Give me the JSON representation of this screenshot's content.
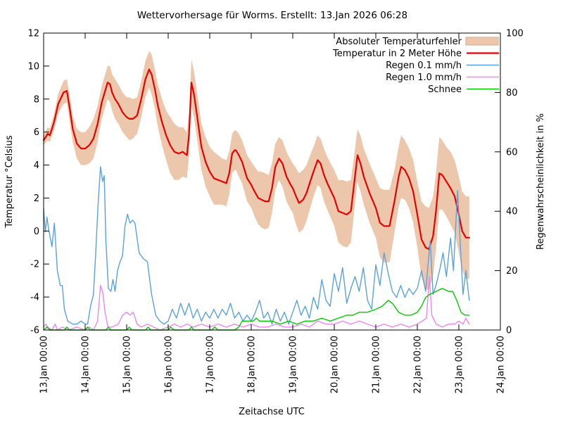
{
  "chart_data": {
    "type": "line",
    "title": "Wettervorhersage für Worms. Erstellt: 13.Jan 2026 06:28",
    "xlabel": "Zeitachse UTC",
    "ylabel_left": "Temperatur °Celsius",
    "ylabel_right": "Regenwahrscheinlichkeit in %",
    "x_unit": "days since 13.Jan 00:00 UTC",
    "x_range_days": [
      0,
      11
    ],
    "x_ticks": [
      "13.Jan 00:00",
      "14.Jan 00:00",
      "15.Jan 00:00",
      "16.Jan 00:00",
      "17.Jan 00:00",
      "18.Jan 00:00",
      "19.Jan 00:00",
      "20.Jan 00:00",
      "21.Jan 00:00",
      "22.Jan 00:00",
      "23.Jan 00:00",
      "24.Jan 00:00"
    ],
    "ylim_left": [
      -6,
      12
    ],
    "yticks_left": [
      -6,
      -4,
      -2,
      0,
      2,
      4,
      6,
      8,
      10,
      12
    ],
    "ylim_right": [
      0,
      100
    ],
    "yticks_right": [
      0,
      20,
      40,
      60,
      80,
      100
    ],
    "grid": false,
    "legend_position": "top-right-inside",
    "legend": [
      {
        "label": "Absoluter Temperaturfehler",
        "color": "#edc7ac",
        "type": "band"
      },
      {
        "label": "Temperatur in 2 Meter Höhe",
        "color": "#e60000",
        "type": "line"
      },
      {
        "label": "Regen 0.1 mm/h",
        "color": "#5aa2de",
        "type": "line"
      },
      {
        "label": "Regen 1.0 mm/h",
        "color": "#ee86ee",
        "type": "line"
      },
      {
        "label": "Schnee",
        "color": "#00cc00",
        "type": "line"
      }
    ],
    "series": {
      "temperature": {
        "name": "Temperatur in 2 Meter Höhe",
        "axis": "left",
        "unit": "°C",
        "color": "#e60000",
        "x": [
          0,
          0.1,
          0.15,
          0.25,
          0.35,
          0.48,
          0.56,
          0.63,
          0.7,
          0.8,
          0.9,
          1,
          1.1,
          1.2,
          1.3,
          1.4,
          1.54,
          1.6,
          1.65,
          1.72,
          1.8,
          1.9,
          2,
          2.07,
          2.15,
          2.25,
          2.35,
          2.45,
          2.54,
          2.6,
          2.68,
          2.75,
          2.85,
          2.95,
          3.05,
          3.15,
          3.25,
          3.35,
          3.45,
          3.5,
          3.56,
          3.62,
          3.7,
          3.8,
          3.9,
          4,
          4.1,
          4.2,
          4.3,
          4.4,
          4.47,
          4.54,
          4.6,
          4.63,
          4.7,
          4.78,
          4.9,
          5,
          5.08,
          5.17,
          5.25,
          5.33,
          5.42,
          5.5,
          5.58,
          5.67,
          5.75,
          5.85,
          5.95,
          6,
          6.08,
          6.15,
          6.25,
          6.33,
          6.42,
          6.5,
          6.6,
          6.67,
          6.75,
          6.85,
          7,
          7.1,
          7.2,
          7.3,
          7.4,
          7.48,
          7.56,
          7.63,
          7.71,
          7.85,
          8,
          8.1,
          8.2,
          8.33,
          8.45,
          8.55,
          8.61,
          8.7,
          8.8,
          8.9,
          9,
          9.1,
          9.2,
          9.28,
          9.38,
          9.45,
          9.53,
          9.6,
          9.7,
          9.8,
          9.9,
          10,
          10.08,
          10.17,
          10.25
        ],
        "y": [
          5.5,
          5.9,
          5.8,
          6.6,
          7.7,
          8.4,
          8.5,
          7.4,
          6.2,
          5.3,
          5.0,
          5.0,
          5.2,
          5.6,
          6.5,
          7.8,
          9.0,
          8.9,
          8.4,
          8.0,
          7.7,
          7.2,
          6.9,
          6.8,
          6.8,
          7.0,
          8.0,
          9.2,
          9.8,
          9.5,
          8.6,
          7.6,
          6.6,
          5.8,
          5.2,
          4.8,
          4.7,
          4.8,
          4.6,
          5.8,
          9.0,
          8.3,
          6.9,
          5.1,
          4.2,
          3.6,
          3.2,
          3.1,
          3.0,
          2.9,
          3.5,
          4.7,
          4.9,
          4.9,
          4.6,
          4.2,
          3.2,
          2.8,
          2.4,
          2.0,
          1.9,
          1.8,
          1.8,
          2.6,
          3.9,
          4.4,
          4.1,
          3.3,
          2.8,
          2.6,
          2.1,
          1.7,
          1.9,
          2.3,
          3.0,
          3.6,
          4.3,
          4.1,
          3.4,
          2.8,
          2.0,
          1.2,
          1.1,
          1.0,
          1.2,
          2.9,
          4.6,
          4.1,
          3.3,
          2.3,
          1.4,
          0.5,
          0.3,
          0.3,
          1.8,
          3.3,
          3.9,
          3.7,
          3.2,
          2.4,
          1.0,
          -0.5,
          -1.0,
          -1.1,
          -0.3,
          1.2,
          3.5,
          3.4,
          3.0,
          2.6,
          2.1,
          1.0,
          0.0,
          -0.4,
          -0.4
        ]
      },
      "temperature_error": {
        "name": "Absoluter Temperaturfehler",
        "axis": "left",
        "unit": "°C",
        "color": "#edc7ac",
        "note": "band = temperature ± halfwidth, shares x of temperature",
        "halfwidth": [
          0.3,
          0.4,
          0.4,
          0.5,
          0.6,
          0.7,
          0.7,
          0.8,
          0.8,
          0.9,
          1.0,
          1.0,
          1.1,
          1.2,
          1.1,
          1.0,
          1.0,
          1.1,
          1.1,
          1.2,
          1.2,
          1.2,
          1.2,
          1.3,
          1.2,
          1.1,
          1.1,
          1.1,
          1.1,
          1.2,
          1.2,
          1.3,
          1.4,
          1.5,
          1.7,
          1.7,
          1.6,
          1.5,
          1.4,
          1.3,
          1.4,
          1.4,
          1.4,
          1.4,
          1.5,
          1.5,
          1.6,
          1.5,
          1.4,
          1.4,
          1.3,
          1.2,
          1.2,
          1.2,
          1.3,
          1.3,
          1.4,
          1.4,
          1.5,
          1.6,
          1.7,
          1.7,
          1.6,
          1.5,
          1.4,
          1.3,
          1.4,
          1.5,
          1.5,
          1.5,
          1.7,
          1.8,
          1.8,
          1.7,
          1.6,
          1.5,
          1.5,
          1.5,
          1.6,
          1.6,
          1.7,
          1.9,
          2.0,
          2.0,
          1.9,
          1.7,
          1.6,
          1.7,
          1.7,
          1.8,
          1.8,
          2.1,
          2.2,
          2.2,
          1.9,
          1.8,
          1.9,
          1.8,
          1.8,
          1.9,
          2.0,
          2.3,
          2.5,
          2.5,
          2.4,
          2.3,
          2.2,
          2.1,
          2.1,
          2.2,
          2.2,
          2.3,
          2.4,
          2.5,
          2.5
        ]
      },
      "rain01": {
        "name": "Regen 0.1 mm/h",
        "axis": "right",
        "unit": "%",
        "color": "#5aa2de",
        "x": [
          0,
          0.04,
          0.08,
          0.12,
          0.2,
          0.26,
          0.33,
          0.4,
          0.45,
          0.5,
          0.58,
          0.7,
          0.8,
          0.9,
          1,
          1.06,
          1.13,
          1.2,
          1.25,
          1.31,
          1.37,
          1.42,
          1.46,
          1.5,
          1.56,
          1.62,
          1.67,
          1.72,
          1.78,
          1.84,
          1.9,
          1.96,
          2.02,
          2.08,
          2.14,
          2.2,
          2.3,
          2.4,
          2.5,
          2.6,
          2.7,
          2.8,
          2.9,
          3,
          3.1,
          3.2,
          3.3,
          3.4,
          3.5,
          3.6,
          3.7,
          3.8,
          3.9,
          4,
          4.1,
          4.2,
          4.3,
          4.4,
          4.5,
          4.6,
          4.7,
          4.8,
          4.9,
          5,
          5.1,
          5.2,
          5.3,
          5.4,
          5.5,
          5.6,
          5.7,
          5.8,
          5.9,
          6,
          6.1,
          6.2,
          6.3,
          6.4,
          6.5,
          6.6,
          6.7,
          6.8,
          6.9,
          7,
          7.1,
          7.2,
          7.3,
          7.4,
          7.5,
          7.6,
          7.7,
          7.8,
          7.9,
          8,
          8.1,
          8.2,
          8.3,
          8.4,
          8.5,
          8.6,
          8.7,
          8.8,
          8.9,
          9,
          9.1,
          9.2,
          9.31,
          9.38,
          9.45,
          9.55,
          9.62,
          9.7,
          9.8,
          9.87,
          9.97,
          10.03,
          10.1,
          10.17,
          10.25
        ],
        "y": [
          41,
          33,
          38,
          34,
          28,
          36,
          20,
          15,
          15,
          7,
          3,
          2,
          2,
          3,
          2,
          2,
          8,
          12,
          25,
          42,
          55,
          50,
          52,
          30,
          14,
          13,
          17,
          13,
          20,
          23,
          25,
          35,
          39,
          36,
          37,
          36,
          26,
          24,
          23,
          12,
          5,
          3,
          2,
          3,
          7,
          4,
          9,
          5,
          9,
          4,
          7,
          3,
          6,
          4,
          7,
          4,
          7,
          5,
          9,
          4,
          6,
          3,
          5,
          3,
          6,
          10,
          4,
          6,
          2,
          7,
          3,
          6,
          2,
          6,
          10,
          5,
          8,
          4,
          11,
          7,
          17,
          10,
          8,
          19,
          13,
          21,
          9,
          14,
          18,
          13,
          21,
          10,
          7,
          22,
          15,
          26,
          19,
          13,
          11,
          15,
          11,
          14,
          12,
          14,
          20,
          13,
          30,
          12,
          15,
          21,
          26,
          18,
          31,
          20,
          47,
          30,
          12,
          20,
          10
        ]
      },
      "rain10": {
        "name": "Regen 1.0 mm/h",
        "axis": "right",
        "unit": "%",
        "color": "#ee86ee",
        "x": [
          0,
          0.05,
          0.1,
          0.2,
          0.28,
          0.33,
          0.45,
          0.6,
          0.8,
          1,
          1.1,
          1.2,
          1.3,
          1.37,
          1.42,
          1.48,
          1.55,
          1.65,
          1.8,
          1.9,
          2,
          2.08,
          2.16,
          2.25,
          2.35,
          2.5,
          2.65,
          2.8,
          3,
          3.15,
          3.3,
          3.45,
          3.6,
          3.8,
          4,
          4.2,
          4.4,
          4.6,
          4.8,
          5,
          5.2,
          5.4,
          5.6,
          5.8,
          6,
          6.2,
          6.4,
          6.6,
          6.8,
          7,
          7.2,
          7.4,
          7.6,
          7.8,
          8,
          8.2,
          8.4,
          8.6,
          8.8,
          9,
          9.12,
          9.22,
          9.29,
          9.35,
          9.45,
          9.6,
          9.75,
          9.9,
          10,
          10.1,
          10.17,
          10.25
        ],
        "y": [
          1,
          2,
          1,
          0,
          2,
          0,
          1,
          0,
          1,
          0,
          1,
          0,
          3,
          15,
          13,
          6,
          1,
          1,
          2,
          5,
          6,
          5,
          6,
          2,
          1,
          2,
          1,
          0,
          1,
          2,
          1,
          2,
          1,
          2,
          1,
          2,
          1,
          2,
          1,
          2,
          1,
          1,
          2,
          1,
          1,
          2,
          1,
          3,
          2,
          2,
          3,
          2,
          3,
          2,
          1,
          2,
          1,
          2,
          1,
          2,
          3,
          4,
          18,
          5,
          2,
          1,
          2,
          2,
          3,
          2,
          4,
          2
        ]
      },
      "snow": {
        "name": "Schnee",
        "axis": "right",
        "unit": "%",
        "color": "#00cc00",
        "x": [
          0,
          0.08,
          0.15,
          0.5,
          0.56,
          0.62,
          1,
          1.06,
          1.12,
          1.5,
          1.56,
          1.62,
          2,
          2.06,
          2.12,
          2.45,
          2.52,
          2.58,
          3,
          3.06,
          3.14,
          3.5,
          3.56,
          3.62,
          4.05,
          4.12,
          4.2,
          4.6,
          4.7,
          4.78,
          4.9,
          5.05,
          5.12,
          5.2,
          5.35,
          5.5,
          5.7,
          5.9,
          6.1,
          6.3,
          6.5,
          6.7,
          6.9,
          7.1,
          7.3,
          7.45,
          7.6,
          7.8,
          8,
          8.15,
          8.3,
          8.4,
          8.55,
          8.7,
          8.85,
          9,
          9.1,
          9.2,
          9.3,
          9.45,
          9.6,
          9.75,
          9.85,
          9.95,
          10.05,
          10.15,
          10.25
        ],
        "y": [
          0,
          1,
          0,
          0,
          1,
          0,
          0,
          1,
          0,
          0,
          1,
          0,
          0,
          1,
          0,
          0,
          1,
          0,
          0,
          1,
          0,
          0,
          1,
          0,
          0,
          1,
          0,
          0,
          1,
          3,
          3,
          3,
          4,
          3,
          3,
          3,
          2,
          3,
          2,
          3,
          3,
          4,
          3,
          4,
          5,
          5,
          6,
          6,
          7,
          8,
          10,
          9,
          6,
          5,
          5,
          6,
          8,
          11,
          12,
          13,
          14,
          13,
          13,
          10,
          6,
          5,
          5
        ]
      }
    }
  }
}
